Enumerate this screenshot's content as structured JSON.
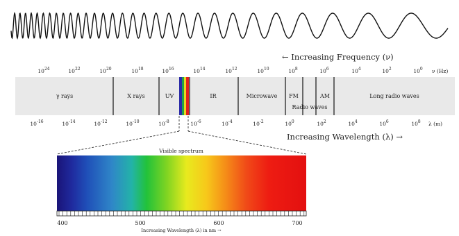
{
  "frequency_axis": {
    "label": "← Increasing Frequency (ν)",
    "unit_label": "ν (Hz)",
    "ticks": [
      {
        "base": "10",
        "exp": "24"
      },
      {
        "base": "10",
        "exp": "22"
      },
      {
        "base": "10",
        "exp": "20"
      },
      {
        "base": "10",
        "exp": "18"
      },
      {
        "base": "10",
        "exp": "16"
      },
      {
        "base": "10",
        "exp": "14"
      },
      {
        "base": "10",
        "exp": "12"
      },
      {
        "base": "10",
        "exp": "10"
      },
      {
        "base": "10",
        "exp": "8"
      },
      {
        "base": "10",
        "exp": "6"
      },
      {
        "base": "10",
        "exp": "4"
      },
      {
        "base": "10",
        "exp": "2"
      },
      {
        "base": "10",
        "exp": "0"
      }
    ]
  },
  "bands": [
    "γ rays",
    "X rays",
    "UV",
    "IR",
    "Microwave",
    "FM",
    "AM",
    "Radio waves",
    "Long radio waves"
  ],
  "wavelength_axis": {
    "label": "Increasing Wavelength (λ) →",
    "unit_label": "λ (m)",
    "ticks": [
      {
        "base": "10",
        "exp": "-16"
      },
      {
        "base": "10",
        "exp": "-14"
      },
      {
        "base": "10",
        "exp": "-12"
      },
      {
        "base": "10",
        "exp": "-10"
      },
      {
        "base": "10",
        "exp": "-8"
      },
      {
        "base": "10",
        "exp": "-6"
      },
      {
        "base": "10",
        "exp": "-4"
      },
      {
        "base": "10",
        "exp": "-2"
      },
      {
        "base": "10",
        "exp": "0"
      },
      {
        "base": "10",
        "exp": "2"
      },
      {
        "base": "10",
        "exp": "4"
      },
      {
        "base": "10",
        "exp": "6"
      },
      {
        "base": "10",
        "exp": "8"
      }
    ]
  },
  "visible": {
    "title": "Visible spectrum",
    "ticks": [
      "400",
      "500",
      "600",
      "700"
    ],
    "axis_label": "Increasing Wavelength (λ) in nm →"
  },
  "colors": {
    "band_bar": "#e9e9e9",
    "divider": "#222222",
    "wave": "#111111"
  }
}
